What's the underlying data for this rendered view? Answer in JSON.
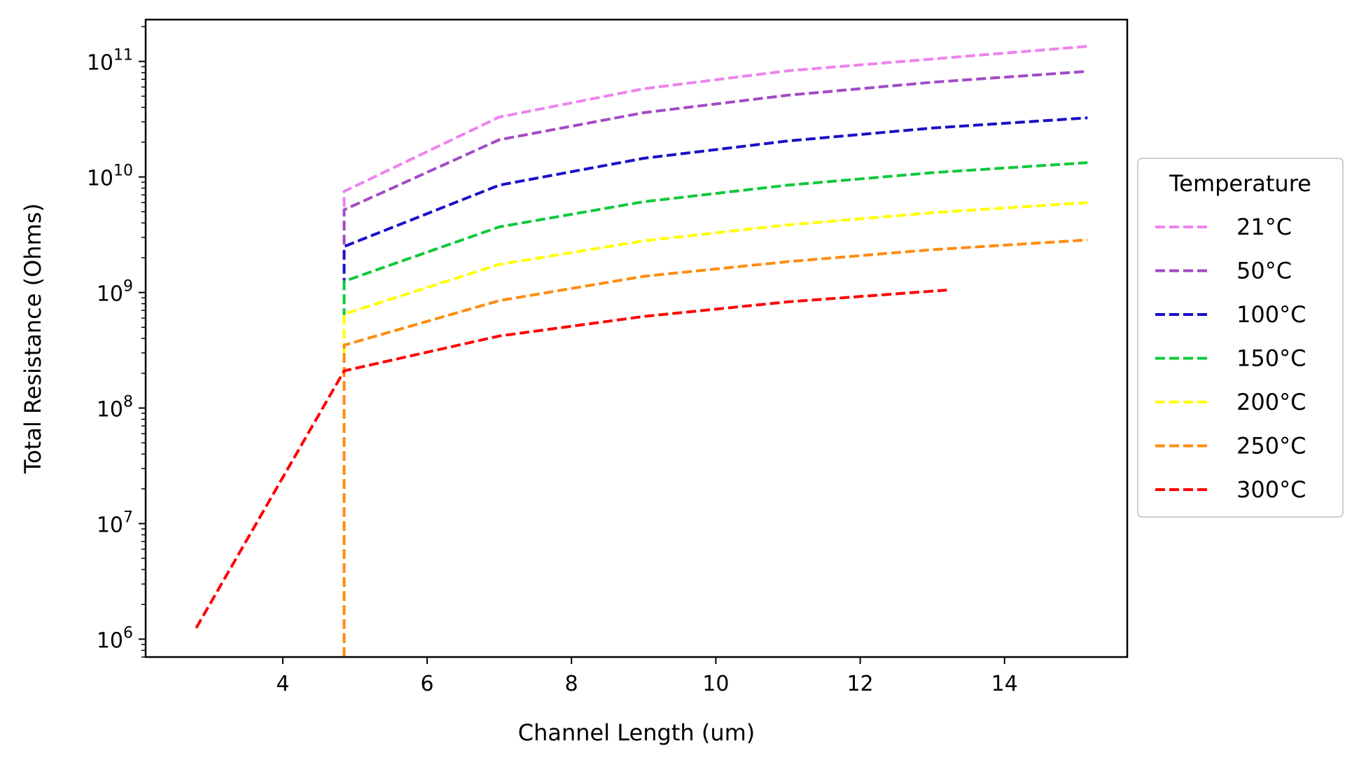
{
  "chart_data": {
    "type": "line",
    "xlabel": "Channel Length (um)",
    "ylabel": "Total Resistance (Ohms)",
    "yscale": "log",
    "xlim": [
      2.1,
      15.7
    ],
    "ylim": [
      700000,
      230000000000
    ],
    "xticks": [
      4,
      6,
      8,
      10,
      12,
      14
    ],
    "yticks": [
      {
        "value": 1000000,
        "base": "10",
        "exp": "6"
      },
      {
        "value": 10000000,
        "base": "10",
        "exp": "7"
      },
      {
        "value": 100000000,
        "base": "10",
        "exp": "8"
      },
      {
        "value": 1000000000,
        "base": "10",
        "exp": "9"
      },
      {
        "value": 10000000000,
        "base": "10",
        "exp": "10"
      },
      {
        "value": 100000000000,
        "base": "10",
        "exp": "11"
      }
    ],
    "grid": false,
    "line_style": "dashed",
    "legend": {
      "title": "Temperature",
      "position": "outside-right"
    },
    "series": [
      {
        "name": "21°C",
        "color": "#ee82ee",
        "x": [
          4.85,
          4.85,
          7.0,
          9.0,
          11.0,
          13.0,
          15.15
        ],
        "y": [
          5500000000,
          7500000000,
          33000000000,
          58000000000,
          83000000000,
          105000000000,
          135000000000
        ]
      },
      {
        "name": "50°C",
        "color": "#a349c6",
        "x": [
          4.85,
          4.85,
          7.0,
          9.0,
          11.0,
          13.0,
          15.15
        ],
        "y": [
          2600000000,
          5200000000,
          21000000000,
          36000000000,
          51000000000,
          66000000000,
          82000000000
        ]
      },
      {
        "name": "100°C",
        "color": "#1a0ec9",
        "x": [
          4.85,
          4.85,
          7.0,
          9.0,
          11.0,
          13.0,
          15.15
        ],
        "y": [
          1100000000,
          2500000000,
          8500000000,
          14500000000,
          20500000000,
          26500000000,
          32500000000
        ]
      },
      {
        "name": "150°C",
        "color": "#0ec93a",
        "x": [
          4.85,
          4.85,
          7.0,
          9.0,
          11.0,
          13.0,
          15.15
        ],
        "y": [
          600000000,
          1250000000,
          3700000000,
          6100000000,
          8500000000,
          10900000000,
          13300000000
        ]
      },
      {
        "name": "200°C",
        "color": "#ffff00",
        "x": [
          4.85,
          4.85,
          7.0,
          9.0,
          11.0,
          13.0,
          15.15
        ],
        "y": [
          300000000,
          650000000,
          1750000000,
          2800000000,
          3850000000,
          4900000000,
          6000000000
        ]
      },
      {
        "name": "250°C",
        "color": "#ff8c0e",
        "x": [
          4.85,
          4.85,
          7.0,
          9.0,
          11.0,
          13.0,
          15.15
        ],
        "y": [
          700000,
          350000000,
          850000000,
          1380000000,
          1850000000,
          2350000000,
          2850000000
        ]
      },
      {
        "name": "300°C",
        "color": "#ff0000",
        "x": [
          2.8,
          4.85,
          7.0,
          9.0,
          11.0,
          13.2
        ],
        "y": [
          1250000,
          210000000,
          420000000,
          620000000,
          830000000,
          1050000000
        ]
      }
    ]
  }
}
